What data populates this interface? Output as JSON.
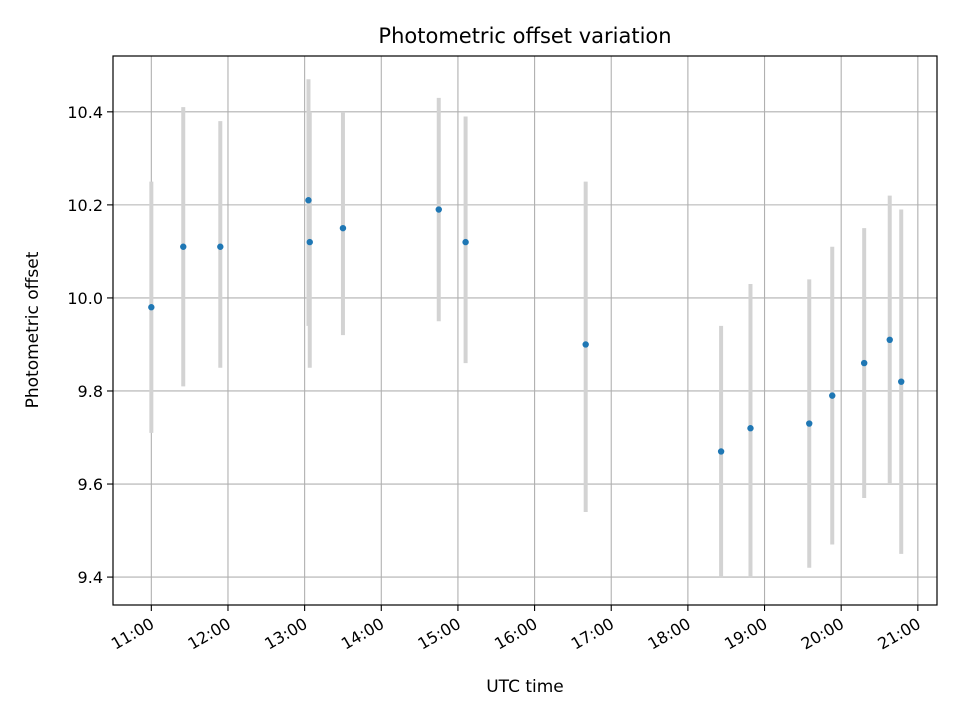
{
  "chart_data": {
    "type": "scatter",
    "title": "Photometric offset variation",
    "xlabel": "UTC time",
    "ylabel": "Photometric offset",
    "grid": true,
    "x_range": [
      "10:30",
      "21:15"
    ],
    "ylim": [
      9.34,
      10.52
    ],
    "x_ticks": [
      "11:00",
      "12:00",
      "13:00",
      "14:00",
      "15:00",
      "16:00",
      "17:00",
      "18:00",
      "19:00",
      "20:00",
      "21:00"
    ],
    "y_ticks": [
      "9.4",
      "9.6",
      "9.8",
      "10.0",
      "10.2",
      "10.4"
    ],
    "colors": {
      "point": "#1f77b4",
      "errorbar": "#d3d3d3",
      "grid": "#b0b0b0"
    },
    "points": [
      {
        "time": "11:00",
        "y": 9.98,
        "ylow": 9.71,
        "yhigh": 10.25
      },
      {
        "time": "11:25",
        "y": 10.11,
        "ylow": 9.81,
        "yhigh": 10.41
      },
      {
        "time": "11:54",
        "y": 10.11,
        "ylow": 9.85,
        "yhigh": 10.38
      },
      {
        "time": "13:03",
        "y": 10.21,
        "ylow": 9.94,
        "yhigh": 10.47
      },
      {
        "time": "13:04",
        "y": 10.12,
        "ylow": 9.85,
        "yhigh": 10.4
      },
      {
        "time": "13:30",
        "y": 10.15,
        "ylow": 9.92,
        "yhigh": 10.4
      },
      {
        "time": "14:45",
        "y": 10.19,
        "ylow": 9.95,
        "yhigh": 10.43
      },
      {
        "time": "15:06",
        "y": 10.12,
        "ylow": 9.86,
        "yhigh": 10.39
      },
      {
        "time": "16:40",
        "y": 9.9,
        "ylow": 9.54,
        "yhigh": 10.25
      },
      {
        "time": "18:26",
        "y": 9.67,
        "ylow": 9.4,
        "yhigh": 9.94
      },
      {
        "time": "18:49",
        "y": 9.72,
        "ylow": 9.4,
        "yhigh": 10.03
      },
      {
        "time": "19:35",
        "y": 9.73,
        "ylow": 9.42,
        "yhigh": 10.04
      },
      {
        "time": "19:53",
        "y": 9.79,
        "ylow": 9.47,
        "yhigh": 10.11
      },
      {
        "time": "20:18",
        "y": 9.86,
        "ylow": 9.57,
        "yhigh": 10.15
      },
      {
        "time": "20:38",
        "y": 9.91,
        "ylow": 9.6,
        "yhigh": 10.22
      },
      {
        "time": "20:47",
        "y": 9.82,
        "ylow": 9.45,
        "yhigh": 10.19
      }
    ]
  }
}
